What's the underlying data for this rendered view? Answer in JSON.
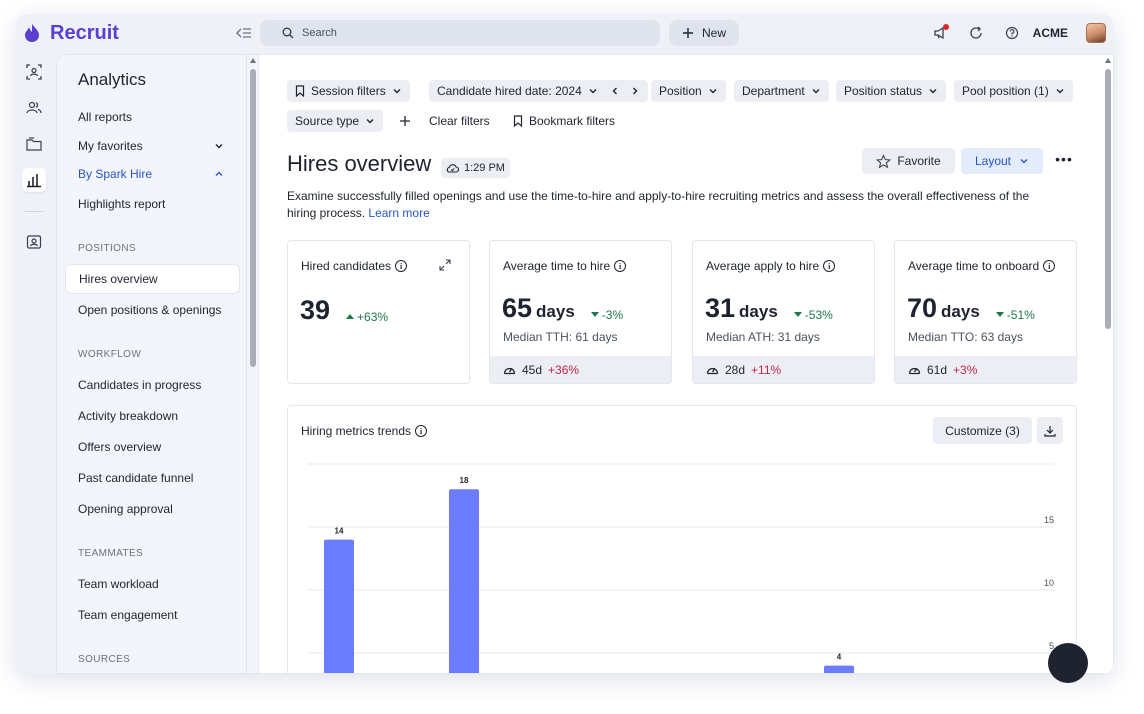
{
  "app": {
    "brand": "Recruit",
    "search_placeholder": "Search",
    "new_label": "New",
    "org": "ACME"
  },
  "sidebar": {
    "title": "Analytics",
    "top_items": [
      {
        "label": "All reports"
      },
      {
        "label": "My favorites"
      },
      {
        "label": "By Spark Hire"
      },
      {
        "label": "Highlights report"
      }
    ],
    "sections": [
      {
        "title": "POSITIONS",
        "items": [
          "Hires overview",
          "Open positions & openings"
        ]
      },
      {
        "title": "WORKFLOW",
        "items": [
          "Candidates in progress",
          "Activity breakdown",
          "Offers overview",
          "Past candidate funnel",
          "Opening approval"
        ]
      },
      {
        "title": "TEAMMATES",
        "items": [
          "Team workload",
          "Team engagement"
        ]
      },
      {
        "title": "SOURCES",
        "items": []
      }
    ]
  },
  "filters": {
    "session": "Session filters",
    "hired_date": "Candidate hired date: 2024",
    "position": "Position",
    "department": "Department",
    "position_status": "Position status",
    "pool_position": "Pool position (1)",
    "source_type": "Source type",
    "clear": "Clear filters",
    "bookmark": "Bookmark filters"
  },
  "page": {
    "title": "Hires overview",
    "time": "1:29 PM",
    "favorite": "Favorite",
    "layout": "Layout",
    "description": "Examine successfully filled openings and use the time-to-hire and apply-to-hire recruiting metrics and assess the overall effectiveness of the hiring process.",
    "learn_more": "Learn more"
  },
  "cards": [
    {
      "label": "Hired candidates",
      "value": "39",
      "unit": "",
      "delta": "+63%",
      "direction": "up",
      "median": "",
      "foot_value": "",
      "foot_delta": ""
    },
    {
      "label": "Average time to hire",
      "value": "65",
      "unit": "days",
      "delta": "-3%",
      "direction": "down",
      "median": "Median TTH: 61 days",
      "foot_value": "45d",
      "foot_delta": "+36%"
    },
    {
      "label": "Average apply to hire",
      "value": "31",
      "unit": "days",
      "delta": "-53%",
      "direction": "down",
      "median": "Median ATH: 31 days",
      "foot_value": "28d",
      "foot_delta": "+11%"
    },
    {
      "label": "Average time to onboard",
      "value": "70",
      "unit": "days",
      "delta": "-51%",
      "direction": "down",
      "median": "Median TTO: 63 days",
      "foot_value": "61d",
      "foot_delta": "+3%"
    }
  ],
  "trends": {
    "title": "Hiring metrics trends",
    "customize": "Customize (3)"
  },
  "chart_data": {
    "type": "bar",
    "title": "Hiring metrics trends",
    "xlabel": "",
    "ylabel": "",
    "ylim": [
      0,
      20
    ],
    "y_ticks": [
      5,
      10,
      15
    ],
    "y_axis_side": "right",
    "grid": true,
    "bars": [
      {
        "slot": 0,
        "value": 14,
        "label": "14"
      },
      {
        "slot": 1,
        "value": 18,
        "label": "18"
      },
      {
        "slot": 4,
        "value": 4,
        "label": "4"
      }
    ],
    "slot_count": 6,
    "color": "#6b7cff"
  },
  "colors": {
    "brand": "#5b3fd1",
    "accent": "#2556c8",
    "positive": "#1a7a4a",
    "negative": "#c2254a",
    "bar": "#6b7cff"
  }
}
